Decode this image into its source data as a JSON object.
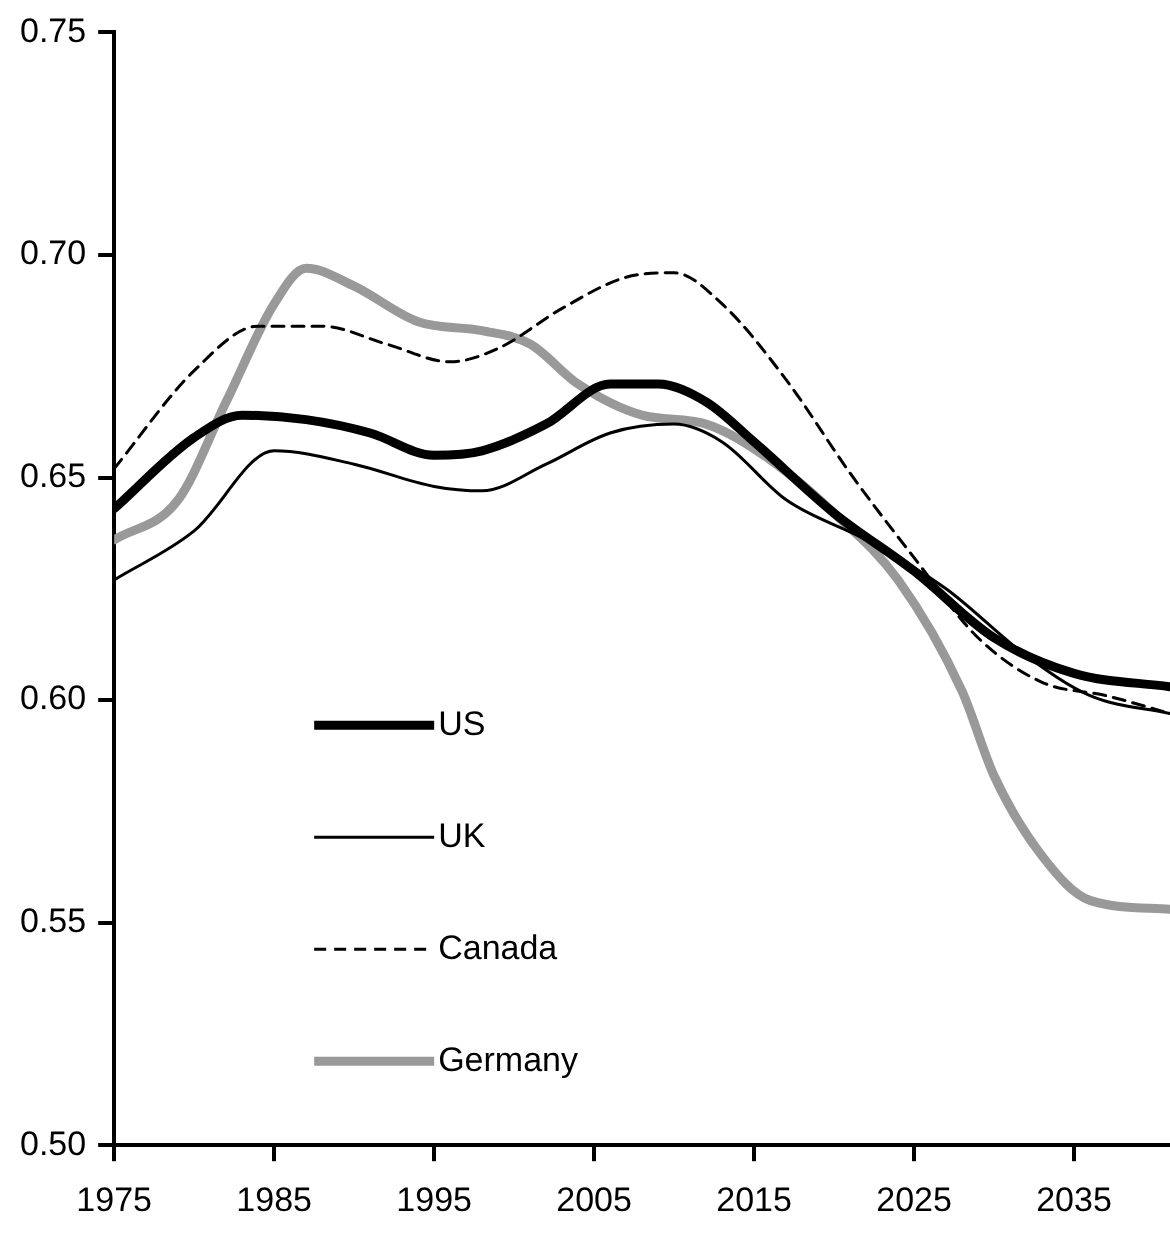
{
  "chart_data": {
    "type": "line",
    "xlim": [
      1975,
      2041
    ],
    "xticks": [
      1975,
      1985,
      1995,
      2005,
      2015,
      2025,
      2035
    ],
    "ylim": [
      0.5,
      0.75
    ],
    "yticks": [
      {
        "value": 0.5,
        "label": "0.50"
      },
      {
        "value": 0.55,
        "label": "0.55"
      },
      {
        "value": 0.6,
        "label": "0.60"
      },
      {
        "value": 0.65,
        "label": "0.65"
      },
      {
        "value": 0.7,
        "label": "0.70"
      },
      {
        "value": 0.75,
        "label": "0.75"
      }
    ],
    "grid": false,
    "legend": "bottom left",
    "marker": "none",
    "series": [
      {
        "name": "US",
        "color": "#000000",
        "line_style": "solid",
        "x": [
          1975,
          1980,
          1983,
          1987,
          1991,
          1995,
          1998,
          2002,
          2006,
          2009,
          2012,
          2015,
          2020,
          2025,
          2030,
          2035,
          2041
        ],
        "values": [
          0.643,
          0.659,
          0.664,
          0.663,
          0.66,
          0.655,
          0.656,
          0.662,
          0.671,
          0.671,
          0.667,
          0.658,
          0.642,
          0.629,
          0.614,
          0.606,
          0.603
        ]
      },
      {
        "name": "UK",
        "color": "#000000",
        "line_style": "solid",
        "x": [
          1975,
          1980,
          1985,
          1990,
          1995,
          1998,
          2002,
          2006,
          2010,
          2013,
          2017,
          2022,
          2027,
          2032,
          2036,
          2041
        ],
        "values": [
          0.627,
          0.638,
          0.656,
          0.653,
          0.648,
          0.647,
          0.653,
          0.66,
          0.662,
          0.658,
          0.645,
          0.636,
          0.625,
          0.61,
          0.601,
          0.597
        ]
      },
      {
        "name": "Canada",
        "color": "#000000",
        "line_style": "dashed",
        "x": [
          1975,
          1980,
          1984,
          1988,
          1992,
          1996,
          1999,
          2003,
          2007,
          2010,
          2013,
          2017,
          2021,
          2025,
          2029,
          2033,
          2037,
          2041
        ],
        "values": [
          0.652,
          0.674,
          0.684,
          0.684,
          0.68,
          0.676,
          0.679,
          0.688,
          0.695,
          0.696,
          0.689,
          0.672,
          0.651,
          0.632,
          0.614,
          0.604,
          0.601,
          0.597
        ]
      },
      {
        "name": "Germany",
        "color": "#999999",
        "line_style": "solid",
        "x": [
          1975,
          1979,
          1982,
          1985,
          1987,
          1990,
          1994,
          1998,
          2001,
          2004,
          2008,
          2012,
          2016,
          2020,
          2024,
          2028,
          2030,
          2033,
          2036,
          2041
        ],
        "values": [
          0.636,
          0.645,
          0.667,
          0.689,
          0.697,
          0.693,
          0.685,
          0.683,
          0.68,
          0.671,
          0.664,
          0.662,
          0.654,
          0.642,
          0.627,
          0.602,
          0.583,
          0.565,
          0.555,
          0.553
        ]
      }
    ]
  }
}
